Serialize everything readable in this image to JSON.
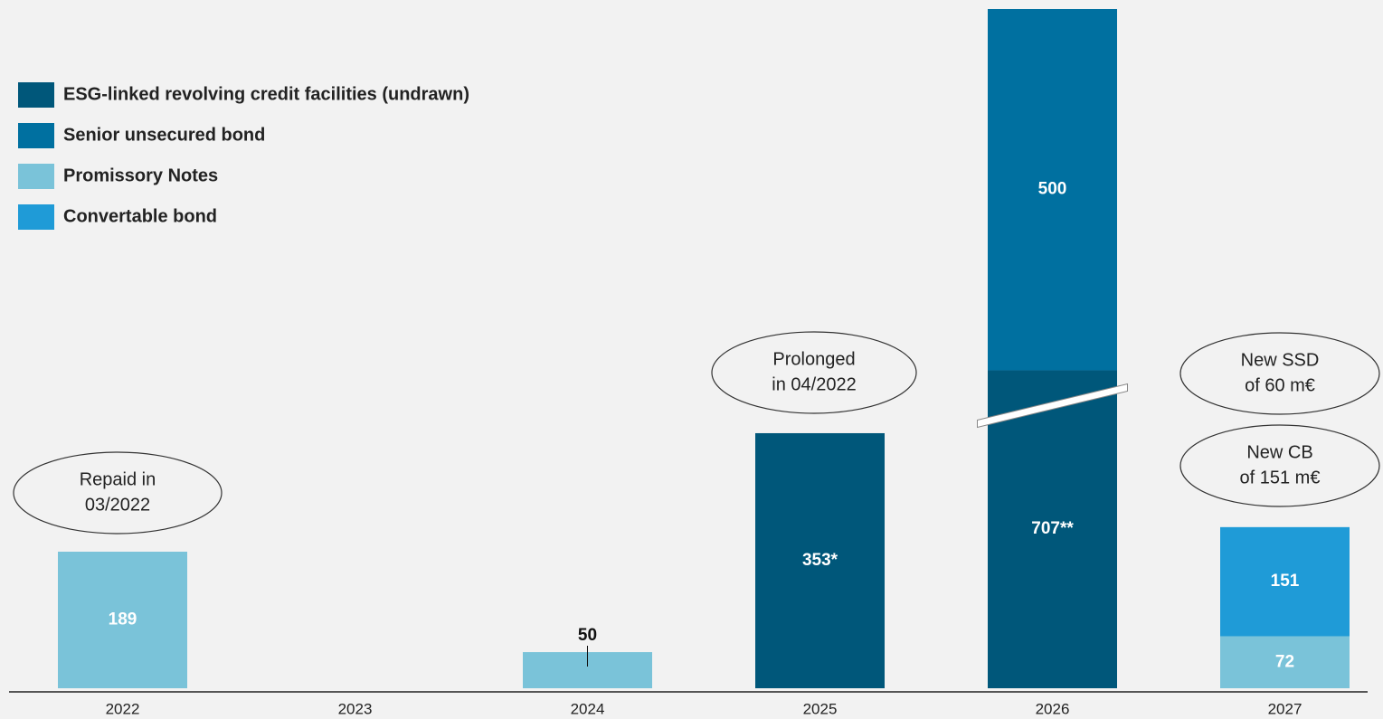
{
  "chart_data": {
    "type": "stacked_bar",
    "categories": [
      "2022",
      "2023",
      "2024",
      "2025",
      "2026",
      "2027"
    ],
    "series": [
      {
        "name": "ESG-linked revolving credit facilities (undrawn)",
        "color": "#00577a",
        "values": [
          null,
          null,
          null,
          353,
          707,
          null
        ],
        "value_labels": [
          null,
          null,
          null,
          "353*",
          "707**",
          null
        ]
      },
      {
        "name": "Senior unsecured bond",
        "color": "#0070a0",
        "values": [
          null,
          null,
          null,
          null,
          500,
          null
        ]
      },
      {
        "name": "Promissory Notes",
        "color": "#7ac3d9",
        "values": [
          189,
          null,
          50,
          null,
          null,
          72
        ]
      },
      {
        "name": "Convertable bond",
        "color": "#1f9bd7",
        "values": [
          null,
          null,
          null,
          null,
          null,
          151
        ]
      }
    ],
    "ylim": [
      0,
      940
    ],
    "axis_break": true,
    "annotations": [
      {
        "lines": [
          "Repaid in",
          "03/2022"
        ]
      },
      {
        "lines": [
          "Prolonged",
          "in 04/2022"
        ]
      },
      {
        "lines": [
          "New SSD",
          "of 60 m€"
        ]
      },
      {
        "lines": [
          "New CB",
          "of 151 m€"
        ]
      }
    ]
  }
}
